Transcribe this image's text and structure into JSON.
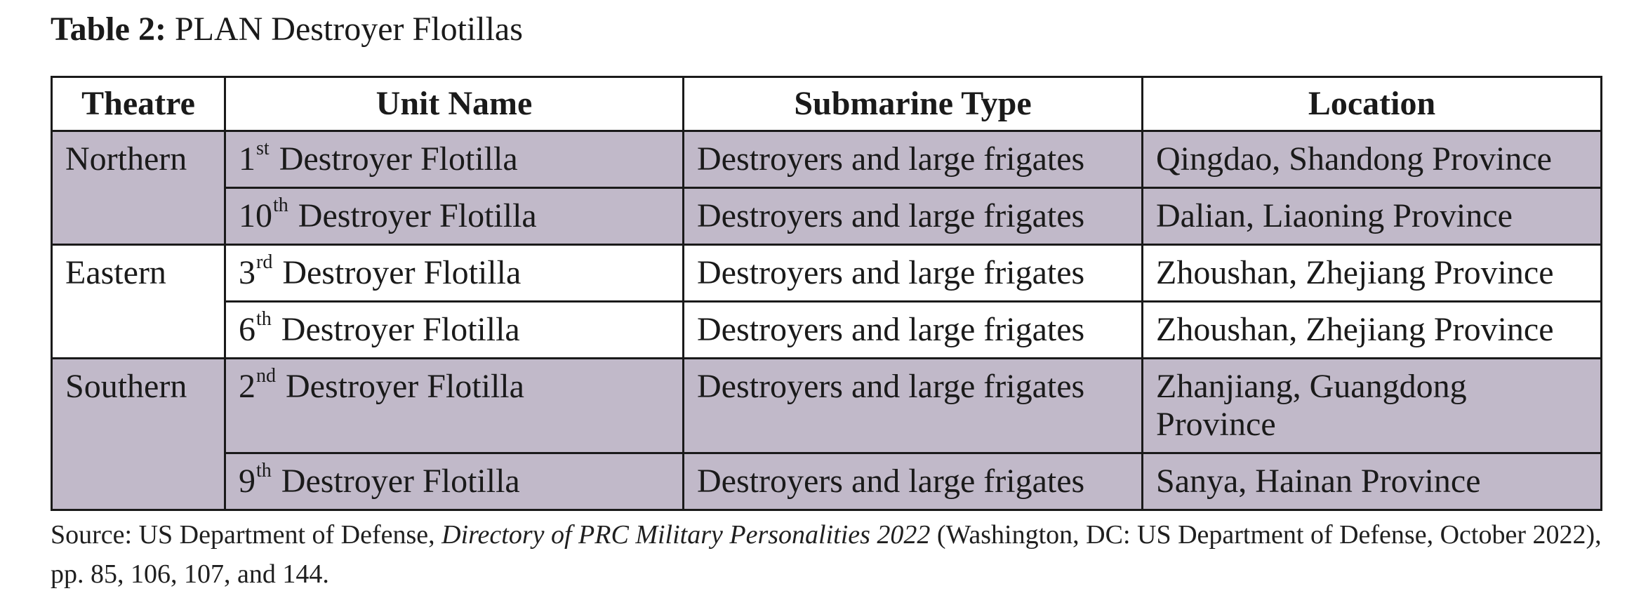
{
  "caption": {
    "label": "Table 2:",
    "title": "PLAN Destroyer Flotillas"
  },
  "table": {
    "headers": [
      "Theatre",
      "Unit Name",
      "Submarine Type",
      "Location"
    ],
    "unit_suffix": "Destroyer Flotilla",
    "rows": [
      {
        "theatre": "Northern",
        "unit_num": "1",
        "unit_ord": "st",
        "type": "Destroyers and large frigates",
        "location": "Qingdao, Shandong Province"
      },
      {
        "theatre": "",
        "unit_num": "10",
        "unit_ord": "th",
        "type": "Destroyers and large frigates",
        "location": "Dalian, Liaoning Province"
      },
      {
        "theatre": "Eastern",
        "unit_num": "3",
        "unit_ord": "rd",
        "type": "Destroyers and large frigates",
        "location": "Zhoushan, Zhejiang Province"
      },
      {
        "theatre": "",
        "unit_num": "6",
        "unit_ord": "th",
        "type": "Destroyers and large frigates",
        "location": "Zhoushan, Zhejiang Province"
      },
      {
        "theatre": "Southern",
        "unit_num": "2",
        "unit_ord": "nd",
        "type": "Destroyers and large frigates",
        "location": "Zhanjiang, Guangdong Province"
      },
      {
        "theatre": "",
        "unit_num": "9",
        "unit_ord": "th",
        "type": "Destroyers and large frigates",
        "location": "Sanya, Hainan Province"
      }
    ],
    "shade_color": "#c1b9c9"
  },
  "source": {
    "prefix": "Source: US Department of Defense, ",
    "publication": "Directory of PRC Military Personalities 2022",
    "suffix": " (Washington, DC: US Department of Defense, October 2022), pp. 85, 106, 107, and 144."
  }
}
